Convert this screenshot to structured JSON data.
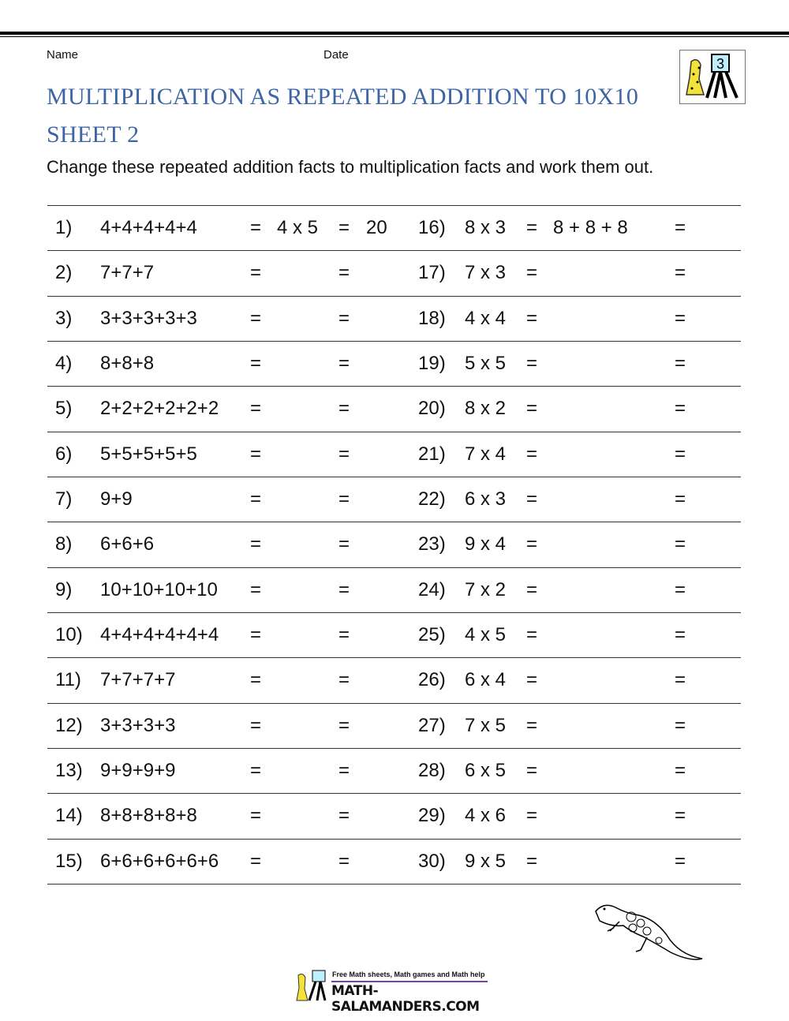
{
  "header": {
    "name_label": "Name",
    "date_label": "Date",
    "logo_badge": "3",
    "title_line1": "MULTIPLICATION AS REPEATED ADDITION TO 10X10",
    "title_line2": "SHEET 2",
    "instructions": "Change these repeated addition facts to multiplication facts and work them out.",
    "title_color": "#3d65a3"
  },
  "left_problems": [
    {
      "num": "1)",
      "expr": "4+4+4+4+4",
      "eq1": "=",
      "answer": "4 x 5",
      "eq2": "=",
      "result": "20"
    },
    {
      "num": "2)",
      "expr": "7+7+7",
      "eq1": "=",
      "answer": "",
      "eq2": "=",
      "result": ""
    },
    {
      "num": "3)",
      "expr": "3+3+3+3+3",
      "eq1": "=",
      "answer": "",
      "eq2": "=",
      "result": ""
    },
    {
      "num": "4)",
      "expr": "8+8+8",
      "eq1": "=",
      "answer": "",
      "eq2": "=",
      "result": ""
    },
    {
      "num": "5)",
      "expr": "2+2+2+2+2+2",
      "eq1": "=",
      "answer": "",
      "eq2": "=",
      "result": ""
    },
    {
      "num": "6)",
      "expr": "5+5+5+5+5",
      "eq1": "=",
      "answer": "",
      "eq2": "=",
      "result": ""
    },
    {
      "num": "7)",
      "expr": "9+9",
      "eq1": "=",
      "answer": "",
      "eq2": "=",
      "result": ""
    },
    {
      "num": "8)",
      "expr": "6+6+6",
      "eq1": "=",
      "answer": "",
      "eq2": "=",
      "result": ""
    },
    {
      "num": "9)",
      "expr": "10+10+10+10",
      "eq1": "=",
      "answer": "",
      "eq2": "=",
      "result": ""
    },
    {
      "num": "10)",
      "expr": "4+4+4+4+4+4",
      "eq1": "=",
      "answer": "",
      "eq2": "=",
      "result": ""
    },
    {
      "num": "11)",
      "expr": "7+7+7+7",
      "eq1": "=",
      "answer": "",
      "eq2": "=",
      "result": ""
    },
    {
      "num": "12)",
      "expr": "3+3+3+3",
      "eq1": "=",
      "answer": "",
      "eq2": "=",
      "result": ""
    },
    {
      "num": "13)",
      "expr": "9+9+9+9",
      "eq1": "=",
      "answer": "",
      "eq2": "=",
      "result": ""
    },
    {
      "num": "14)",
      "expr": "8+8+8+8+8",
      "eq1": "=",
      "answer": "",
      "eq2": "=",
      "result": ""
    },
    {
      "num": "15)",
      "expr": "6+6+6+6+6+6",
      "eq1": "=",
      "answer": "",
      "eq2": "=",
      "result": ""
    }
  ],
  "right_problems": [
    {
      "num": "16)",
      "expr": "8 x 3",
      "eq1": "=",
      "answer": "8 + 8 + 8",
      "eq2": "="
    },
    {
      "num": "17)",
      "expr": "7 x 3",
      "eq1": "=",
      "answer": "",
      "eq2": "="
    },
    {
      "num": "18)",
      "expr": "4 x 4",
      "eq1": "=",
      "answer": "",
      "eq2": "="
    },
    {
      "num": "19)",
      "expr": "5 x 5",
      "eq1": "=",
      "answer": "",
      "eq2": "="
    },
    {
      "num": "20)",
      "expr": "8 x 2",
      "eq1": "=",
      "answer": "",
      "eq2": "="
    },
    {
      "num": "21)",
      "expr": "7 x 4",
      "eq1": "=",
      "answer": "",
      "eq2": "="
    },
    {
      "num": "22)",
      "expr": "6 x 3",
      "eq1": "=",
      "answer": "",
      "eq2": "="
    },
    {
      "num": "23)",
      "expr": "9 x 4",
      "eq1": "=",
      "answer": "",
      "eq2": "="
    },
    {
      "num": "24)",
      "expr": "7 x 2",
      "eq1": "=",
      "answer": "",
      "eq2": "="
    },
    {
      "num": "25)",
      "expr": "4 x 5",
      "eq1": "=",
      "answer": "",
      "eq2": "="
    },
    {
      "num": "26)",
      "expr": "6 x 4",
      "eq1": "=",
      "answer": "",
      "eq2": "="
    },
    {
      "num": "27)",
      "expr": "7 x 5",
      "eq1": "=",
      "answer": "",
      "eq2": "="
    },
    {
      "num": "28)",
      "expr": "6 x 5",
      "eq1": "=",
      "answer": "",
      "eq2": "="
    },
    {
      "num": "29)",
      "expr": "4 x 6",
      "eq1": "=",
      "answer": "",
      "eq2": "="
    },
    {
      "num": "30)",
      "expr": "9 x 5",
      "eq1": "=",
      "answer": "",
      "eq2": "="
    }
  ],
  "footer": {
    "tagline": "Free Math sheets, Math games and Math help",
    "brand": "MATH-SALAMANDERS.COM",
    "accent": "#7b3fb5"
  },
  "icons": {
    "logo": "salamander-easel-logo",
    "mascot": "salamander-icon"
  }
}
